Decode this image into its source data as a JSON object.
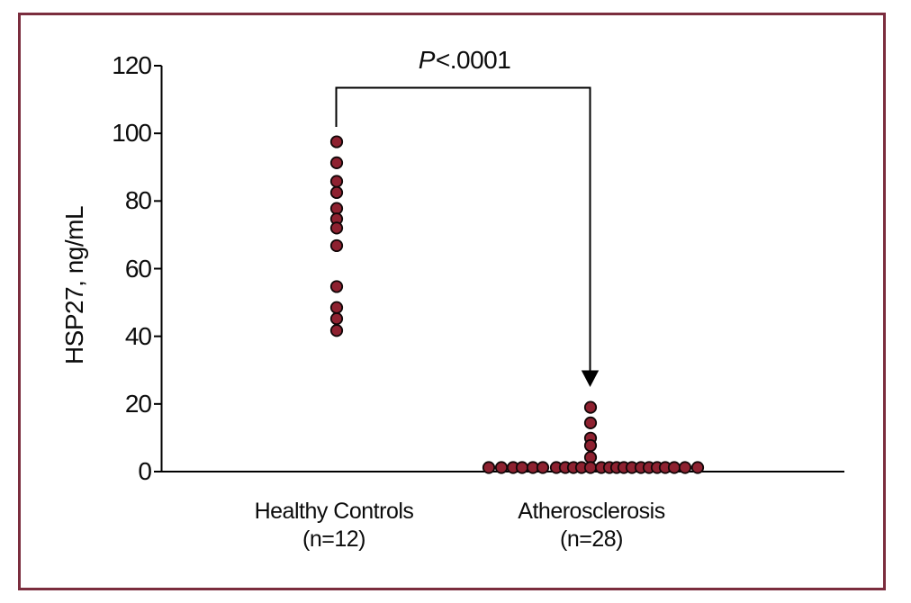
{
  "figure": {
    "border_color": "#7b2d3e",
    "background_color": "#ffffff",
    "axis_color": "#000000"
  },
  "chart_data": {
    "type": "scatter",
    "subtype": "dot-strip-plot",
    "title": "",
    "xlabel": "",
    "ylabel": "HSP27, ng/mL",
    "ylim": [
      0,
      120
    ],
    "yticks": [
      0,
      20,
      40,
      60,
      80,
      100,
      120
    ],
    "grid": false,
    "legend": "none",
    "point_fill": "#8e2130",
    "point_stroke": "#120708",
    "annotation": {
      "text": "P<.0001",
      "text_italic": "P",
      "text_rest": "<.0001",
      "bracket_from_group": 0,
      "bracket_to_group": 1,
      "arrow_into_group": 1
    },
    "groups": [
      {
        "label": "Healthy Controls",
        "n_label": "(n=12)",
        "n": 12,
        "values": [
          97.5,
          91.3,
          85.8,
          82.5,
          77.8,
          74.7,
          72.0,
          66.8,
          54.7,
          48.5,
          45.2,
          41.7
        ],
        "jitter": [
          0,
          0,
          0,
          0,
          0,
          0,
          0,
          0,
          0,
          0,
          0,
          0
        ]
      },
      {
        "label": "Atherosclerosis",
        "n_label": "(n=28)",
        "n": 28,
        "values": [
          19.0,
          14.4,
          9.9,
          7.7,
          4.2,
          1.2,
          1.2,
          1.2,
          1.2,
          1.2,
          1.2,
          1.2,
          1.2,
          1.2,
          1.2,
          1.2,
          1.2,
          1.2,
          1.2,
          1.2,
          1.2,
          1.2,
          1.2,
          1.2,
          1.2,
          1.2,
          1.2,
          1.2
        ],
        "jitter": [
          0,
          0,
          0,
          0,
          0,
          -113,
          -99,
          -86,
          -76,
          -64,
          -53,
          -38,
          -28,
          -19,
          -10,
          0,
          12,
          21,
          29,
          37,
          46,
          56,
          65,
          74,
          83,
          93,
          105,
          119
        ]
      }
    ]
  }
}
